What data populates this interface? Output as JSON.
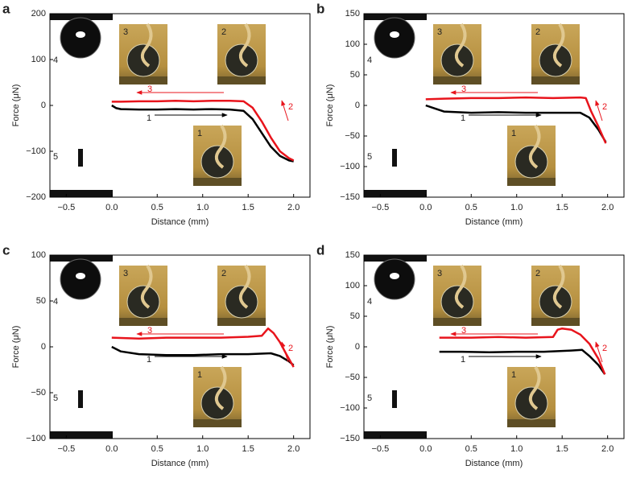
{
  "chart_data": [
    {
      "type": "line",
      "panel": "a",
      "xlabel": "Distance (mm)",
      "ylabel": "Force (μN)",
      "xlim": [
        -0.68,
        2.18
      ],
      "xticks": [
        {
          "value": -0.5,
          "label": "−0.5"
        },
        {
          "value": 0,
          "label": "0.0"
        },
        {
          "value": 0.5,
          "label": "0.5"
        },
        {
          "value": 1,
          "label": "1.0"
        },
        {
          "value": 1.5,
          "label": "1.5"
        },
        {
          "value": 2,
          "label": "2.0"
        }
      ],
      "ylim": [
        -200,
        200
      ],
      "yticks": [
        {
          "value": -200,
          "label": "−200"
        },
        {
          "value": -100,
          "label": "−100"
        },
        0,
        100,
        200
      ],
      "series": [
        {
          "color": "#000000",
          "x": [
            0,
            0.05,
            0.1,
            0.3,
            0.5,
            0.7,
            0.9,
            1.1,
            1.3,
            1.45,
            1.55,
            1.65,
            1.75,
            1.85,
            1.95,
            2.0
          ],
          "values": [
            0,
            -6,
            -8,
            -9,
            -9,
            -8,
            -9,
            -8,
            -9,
            -12,
            -30,
            -60,
            -90,
            -110,
            -120,
            -122
          ]
        },
        {
          "color": "#e8141c",
          "x": [
            0,
            0.1,
            0.3,
            0.5,
            0.7,
            0.9,
            1.1,
            1.3,
            1.45,
            1.55,
            1.65,
            1.75,
            1.85,
            1.95,
            2.0
          ],
          "values": [
            8,
            8,
            9,
            9,
            10,
            9,
            10,
            10,
            9,
            -5,
            -35,
            -70,
            -100,
            -115,
            -120
          ]
        }
      ],
      "curve_labels": [
        "1",
        "2",
        "3"
      ],
      "inset_labels": [
        "1",
        "2",
        "3",
        "4",
        "5"
      ]
    },
    {
      "type": "line",
      "panel": "b",
      "xlabel": "Distance (mm)",
      "ylabel": "Force (μN)",
      "xlim": [
        -0.68,
        2.18
      ],
      "xticks": [
        {
          "value": -0.5,
          "label": "−0.5"
        },
        {
          "value": 0,
          "label": "0.0"
        },
        {
          "value": 0.5,
          "label": "0.5"
        },
        {
          "value": 1,
          "label": "1.0"
        },
        {
          "value": 1.5,
          "label": "1.5"
        },
        {
          "value": 2,
          "label": "2.0"
        }
      ],
      "ylim": [
        -150,
        150
      ],
      "yticks": [
        {
          "value": -150,
          "label": "−150"
        },
        {
          "value": -100,
          "label": "−100"
        },
        {
          "value": -50,
          "label": "−50"
        },
        0,
        50,
        100,
        150
      ],
      "series": [
        {
          "color": "#000000",
          "x": [
            0,
            0.1,
            0.2,
            0.5,
            0.8,
            1.1,
            1.4,
            1.7,
            1.8,
            1.9,
            1.98
          ],
          "values": [
            0,
            -5,
            -10,
            -12,
            -11,
            -12,
            -12,
            -12,
            -20,
            -40,
            -60
          ]
        },
        {
          "color": "#e8141c",
          "x": [
            0,
            0.2,
            0.5,
            0.8,
            1.1,
            1.4,
            1.7,
            1.76,
            1.82,
            1.9,
            1.98
          ],
          "values": [
            10,
            11,
            12,
            12,
            13,
            12,
            13,
            12,
            -10,
            -35,
            -62
          ]
        }
      ],
      "curve_labels": [
        "1",
        "2",
        "3"
      ],
      "inset_labels": [
        "1",
        "2",
        "3",
        "4",
        "5"
      ]
    },
    {
      "type": "line",
      "panel": "c",
      "xlabel": "Distance (mm)",
      "ylabel": "Force (μN)",
      "xlim": [
        -0.68,
        2.18
      ],
      "xticks": [
        {
          "value": -0.5,
          "label": "−0.5"
        },
        {
          "value": 0,
          "label": "0.0"
        },
        {
          "value": 0.5,
          "label": "0.5"
        },
        {
          "value": 1,
          "label": "1.0"
        },
        {
          "value": 1.5,
          "label": "1.5"
        },
        {
          "value": 2,
          "label": "2.0"
        }
      ],
      "ylim": [
        -100,
        100
      ],
      "yticks": [
        {
          "value": -100,
          "label": "−100"
        },
        {
          "value": -50,
          "label": "−50"
        },
        0,
        50,
        100
      ],
      "series": [
        {
          "color": "#000000",
          "x": [
            0,
            0.1,
            0.3,
            0.6,
            0.9,
            1.2,
            1.5,
            1.75,
            1.85,
            1.95,
            2.0
          ],
          "values": [
            0,
            -5,
            -8,
            -9,
            -9,
            -8,
            -8,
            -7,
            -10,
            -16,
            -20
          ]
        },
        {
          "color": "#e8141c",
          "x": [
            0,
            0.3,
            0.6,
            0.9,
            1.2,
            1.5,
            1.65,
            1.72,
            1.78,
            1.85,
            1.92,
            2.0
          ],
          "values": [
            10,
            9,
            10,
            10,
            10,
            11,
            12,
            20,
            15,
            5,
            -8,
            -22
          ]
        }
      ],
      "curve_labels": [
        "1",
        "2",
        "3"
      ],
      "inset_labels": [
        "1",
        "2",
        "3",
        "4",
        "5"
      ]
    },
    {
      "type": "line",
      "panel": "d",
      "xlabel": "Distance (mm)",
      "ylabel": "Force (μN)",
      "xlim": [
        -0.68,
        2.18
      ],
      "xticks": [
        {
          "value": -0.5,
          "label": "−0.5"
        },
        {
          "value": 0,
          "label": "0.0"
        },
        {
          "value": 0.5,
          "label": "0.5"
        },
        {
          "value": 1,
          "label": "1.0"
        },
        {
          "value": 1.5,
          "label": "1.5"
        },
        {
          "value": 2,
          "label": "2.0"
        }
      ],
      "ylim": [
        -150,
        150
      ],
      "yticks": [
        {
          "value": -150,
          "label": "−150"
        },
        {
          "value": -100,
          "label": "−100"
        },
        {
          "value": -50,
          "label": "−50"
        },
        0,
        50,
        100,
        150
      ],
      "series": [
        {
          "color": "#000000",
          "x": [
            0.15,
            0.4,
            0.7,
            1.0,
            1.3,
            1.6,
            1.72,
            1.8,
            1.9,
            1.97
          ],
          "values": [
            -8,
            -8,
            -9,
            -8,
            -8,
            -6,
            -5,
            -15,
            -30,
            -45
          ]
        },
        {
          "color": "#e8141c",
          "x": [
            0.15,
            0.5,
            0.8,
            1.1,
            1.4,
            1.45,
            1.5,
            1.6,
            1.7,
            1.8,
            1.9,
            1.97
          ],
          "values": [
            15,
            15,
            16,
            15,
            16,
            28,
            30,
            28,
            20,
            5,
            -20,
            -45
          ]
        }
      ],
      "curve_labels": [
        "1",
        "2",
        "3"
      ],
      "inset_labels": [
        "1",
        "2",
        "3",
        "4",
        "5"
      ]
    }
  ]
}
